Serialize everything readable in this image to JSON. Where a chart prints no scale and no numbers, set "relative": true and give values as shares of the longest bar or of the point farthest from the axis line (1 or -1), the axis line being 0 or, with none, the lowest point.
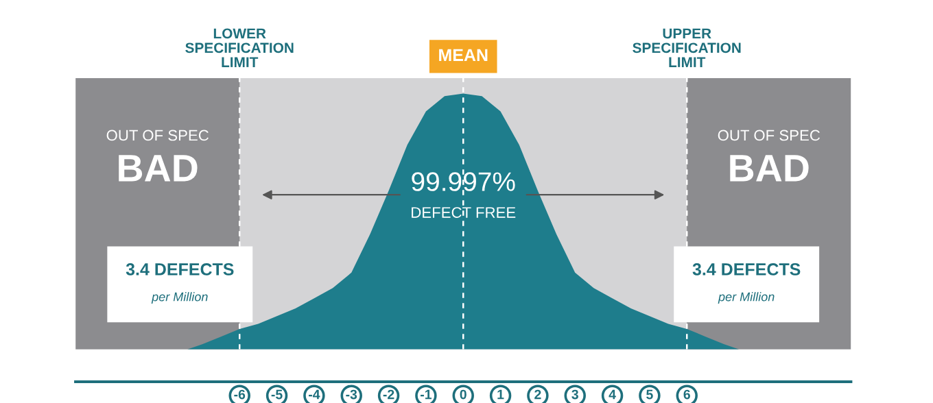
{
  "chart_data": {
    "type": "area",
    "relative": true,
    "x": [
      -7.4,
      -7,
      -6.5,
      -6,
      -5.5,
      -5,
      -4.5,
      -4,
      -3.5,
      -3,
      -2.5,
      -2,
      -1.5,
      -1,
      -0.5,
      0,
      0.5,
      1,
      1.5,
      2,
      2.5,
      3,
      3.5,
      4,
      4.5,
      5,
      5.5,
      6,
      6.5,
      7,
      7.4
    ],
    "series": [
      {
        "color": "#1e7d8c",
        "values": [
          0,
          0.02,
          0.05,
          0.08,
          0.1,
          0.13,
          0.16,
          0.2,
          0.24,
          0.3,
          0.45,
          0.62,
          0.8,
          0.93,
          0.99,
          1,
          0.99,
          0.93,
          0.8,
          0.62,
          0.45,
          0.3,
          0.24,
          0.2,
          0.16,
          0.13,
          0.1,
          0.08,
          0.05,
          0.02,
          0
        ]
      }
    ],
    "xlim": [
      -10.4,
      10.4
    ],
    "xticks": [
      -6,
      -5,
      -4,
      -3,
      -2,
      -1,
      0,
      1,
      2,
      3,
      4,
      5,
      6
    ],
    "ref_lines": [
      {
        "axis": "x",
        "value": -6,
        "label": "LOWER\nSPECIFICATION\nLIMIT",
        "color": "#ffffff",
        "line_style": "dashed"
      },
      {
        "axis": "x",
        "value": 0,
        "label": "MEAN",
        "color": "#ffffff",
        "line_style": "dashed"
      },
      {
        "axis": "x",
        "value": 6,
        "label": "UPPER\nSPECIFICATION\nLIMIT",
        "color": "#ffffff",
        "line_style": "dashed"
      }
    ],
    "bands": [
      {
        "axis": "x",
        "from": -10.4,
        "to": -6,
        "label": "OUT OF SPEC\nBAD",
        "color": "#8c8c8f"
      },
      {
        "axis": "x",
        "from": 6,
        "to": 10.4,
        "label": "OUT OF SPEC\nBAD",
        "color": "#8c8c8f"
      }
    ],
    "annotations": [
      "3.4 DEFECTS\nper Million",
      "3.4 DEFECTS\nper Million",
      "99.997%\nDEFECT FREE"
    ]
  }
}
